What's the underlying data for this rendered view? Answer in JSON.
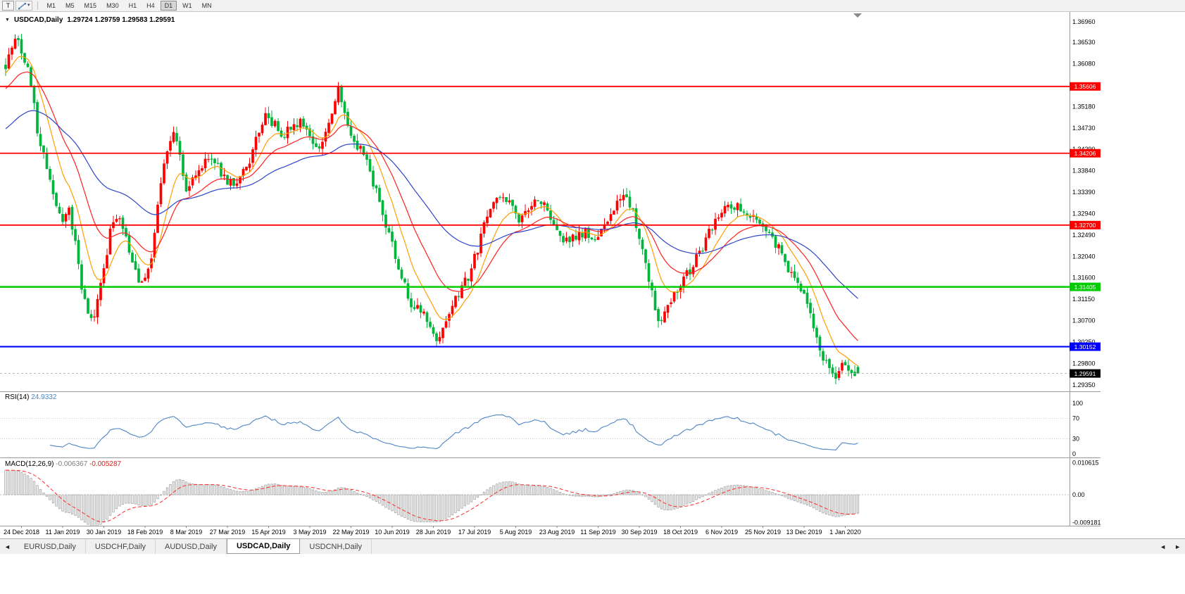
{
  "toolbar": {
    "text_tool": "T",
    "timeframes": [
      "M1",
      "M5",
      "M15",
      "M30",
      "H1",
      "H4",
      "D1",
      "W1",
      "MN"
    ],
    "active_timeframe": "D1"
  },
  "icons": {
    "collapse": "▼",
    "dropdown": "▾",
    "tab_left": "◄",
    "tab_right": "►"
  },
  "chart": {
    "title": "USDCAD,Daily",
    "ohlc": "1.29724 1.29759 1.29583 1.29591"
  },
  "chart_data": {
    "type": "candlestick",
    "symbol": "USDCAD",
    "period": "Daily",
    "last_candle": {
      "open": 1.29724,
      "high": 1.29759,
      "low": 1.29583,
      "close": 1.29591
    },
    "bid": "1.29591",
    "price_axis": [
      "1.36960",
      "1.36530",
      "1.36080",
      "1.35630",
      "1.35180",
      "1.34730",
      "1.34290",
      "1.33840",
      "1.33390",
      "1.32940",
      "1.32490",
      "1.32040",
      "1.31600",
      "1.31150",
      "1.30700",
      "1.30250",
      "1.29800",
      "1.29350"
    ],
    "date_axis": [
      "24 Dec 2018",
      "11 Jan 2019",
      "30 Jan 2019",
      "18 Feb 2019",
      "8 Mar 2019",
      "27 Mar 2019",
      "15 Apr 2019",
      "3 May 2019",
      "22 May 2019",
      "10 Jun 2019",
      "28 Jun 2019",
      "17 Jul 2019",
      "5 Aug 2019",
      "23 Aug 2019",
      "11 Sep 2019",
      "30 Sep 2019",
      "18 Oct 2019",
      "6 Nov 2019",
      "25 Nov 2019",
      "13 Dec 2019",
      "1 Jan 2020"
    ],
    "hlines": [
      {
        "price": 1.35606,
        "label": "1.35606",
        "color": "#ff0000",
        "width": 1.8
      },
      {
        "price": 1.34206,
        "label": "1.34206",
        "color": "#ff0000",
        "width": 1.8
      },
      {
        "price": 1.327,
        "label": "1.32700",
        "color": "#ff0000",
        "width": 1.8
      },
      {
        "price": 1.31405,
        "label": "1.31405",
        "color": "#00cc00",
        "width": 2.5
      },
      {
        "price": 1.30152,
        "label": "1.30152",
        "color": "#0000ff",
        "width": 2.2
      }
    ],
    "candles": {
      "count": 270,
      "up_color": "#ff0000",
      "down_color": "#00b43c",
      "path": [
        [
          0,
          1.36
        ],
        [
          2,
          1.3645
        ],
        [
          4,
          1.3655
        ],
        [
          6,
          1.3618
        ],
        [
          8,
          1.3565
        ],
        [
          10,
          1.347
        ],
        [
          13,
          1.3395
        ],
        [
          16,
          1.332
        ],
        [
          18,
          1.3282
        ],
        [
          20,
          1.3296
        ],
        [
          22,
          1.324
        ],
        [
          24,
          1.313
        ],
        [
          26,
          1.3086
        ],
        [
          28,
          1.307
        ],
        [
          30,
          1.314
        ],
        [
          33,
          1.3256
        ],
        [
          36,
          1.3286
        ],
        [
          38,
          1.324
        ],
        [
          40,
          1.3196
        ],
        [
          42,
          1.315
        ],
        [
          44,
          1.3166
        ],
        [
          46,
          1.32
        ],
        [
          48,
          1.331
        ],
        [
          51,
          1.343
        ],
        [
          53,
          1.3466
        ],
        [
          55,
          1.341
        ],
        [
          57,
          1.3346
        ],
        [
          59,
          1.336
        ],
        [
          62,
          1.3396
        ],
        [
          65,
          1.3406
        ],
        [
          68,
          1.338
        ],
        [
          71,
          1.3356
        ],
        [
          74,
          1.3366
        ],
        [
          77,
          1.3406
        ],
        [
          80,
          1.347
        ],
        [
          82,
          1.351
        ],
        [
          84,
          1.3486
        ],
        [
          87,
          1.346
        ],
        [
          90,
          1.347
        ],
        [
          93,
          1.3482
        ],
        [
          96,
          1.3456
        ],
        [
          99,
          1.3436
        ],
        [
          102,
          1.3476
        ],
        [
          104,
          1.3532
        ],
        [
          105,
          1.3552
        ],
        [
          107,
          1.3496
        ],
        [
          110,
          1.3446
        ],
        [
          113,
          1.3426
        ],
        [
          116,
          1.336
        ],
        [
          119,
          1.329
        ],
        [
          122,
          1.3226
        ],
        [
          125,
          1.316
        ],
        [
          128,
          1.3106
        ],
        [
          131,
          1.3086
        ],
        [
          134,
          1.3062
        ],
        [
          136,
          1.3032
        ],
        [
          138,
          1.305
        ],
        [
          141,
          1.31
        ],
        [
          144,
          1.3136
        ],
        [
          147,
          1.3176
        ],
        [
          150,
          1.3246
        ],
        [
          153,
          1.3306
        ],
        [
          156,
          1.333
        ],
        [
          159,
          1.3316
        ],
        [
          162,
          1.3276
        ],
        [
          165,
          1.3296
        ],
        [
          168,
          1.333
        ],
        [
          171,
          1.3306
        ],
        [
          174,
          1.3256
        ],
        [
          177,
          1.3236
        ],
        [
          180,
          1.3246
        ],
        [
          183,
          1.326
        ],
        [
          186,
          1.3236
        ],
        [
          189,
          1.327
        ],
        [
          192,
          1.3306
        ],
        [
          195,
          1.3336
        ],
        [
          198,
          1.3296
        ],
        [
          201,
          1.321
        ],
        [
          204,
          1.313
        ],
        [
          206,
          1.3066
        ],
        [
          208,
          1.309
        ],
        [
          211,
          1.313
        ],
        [
          214,
          1.3156
        ],
        [
          217,
          1.3186
        ],
        [
          220,
          1.3226
        ],
        [
          223,
          1.3266
        ],
        [
          226,
          1.3296
        ],
        [
          229,
          1.3316
        ],
        [
          232,
          1.3302
        ],
        [
          235,
          1.329
        ],
        [
          238,
          1.3272
        ],
        [
          241,
          1.3252
        ],
        [
          244,
          1.3222
        ],
        [
          247,
          1.318
        ],
        [
          250,
          1.315
        ],
        [
          252,
          1.3118
        ],
        [
          254,
          1.3078
        ],
        [
          256,
          1.3028
        ],
        [
          258,
          1.2988
        ],
        [
          260,
          1.2972
        ],
        [
          262,
          1.2958
        ],
        [
          264,
          1.2978
        ],
        [
          266,
          1.2962
        ],
        [
          269,
          1.2959
        ]
      ]
    },
    "moving_averages": [
      {
        "period": 10,
        "color": "#ff9e00",
        "seed_offset": -0.001
      },
      {
        "period": 22,
        "color": "#ff2020",
        "seed_offset": -0.0045
      },
      {
        "period": 55,
        "color": "#2e45c8",
        "seed_offset": -0.013
      }
    ],
    "rsi": {
      "label": "RSI(14)",
      "value": "24.9332",
      "period": 14,
      "color": "#4f86c6",
      "axis": [
        "100",
        "70",
        "30",
        "0"
      ],
      "levels": [
        70,
        30
      ]
    },
    "macd": {
      "label": "MACD(12,26,9)",
      "value_main": "-0.006367",
      "value_signal": "-0.005287",
      "fast": 12,
      "slow": 26,
      "signal_period": 9,
      "axis": [
        "0.010615",
        "0.00",
        "-0.009181"
      ],
      "hist_color": "#a0a0a0",
      "signal_color": "#ff2a2a"
    }
  },
  "tabs": [
    "EURUSD,Daily",
    "USDCHF,Daily",
    "AUDUSD,Daily",
    "USDCAD,Daily",
    "USDCNH,Daily"
  ],
  "active_tab": "USDCAD,Daily"
}
